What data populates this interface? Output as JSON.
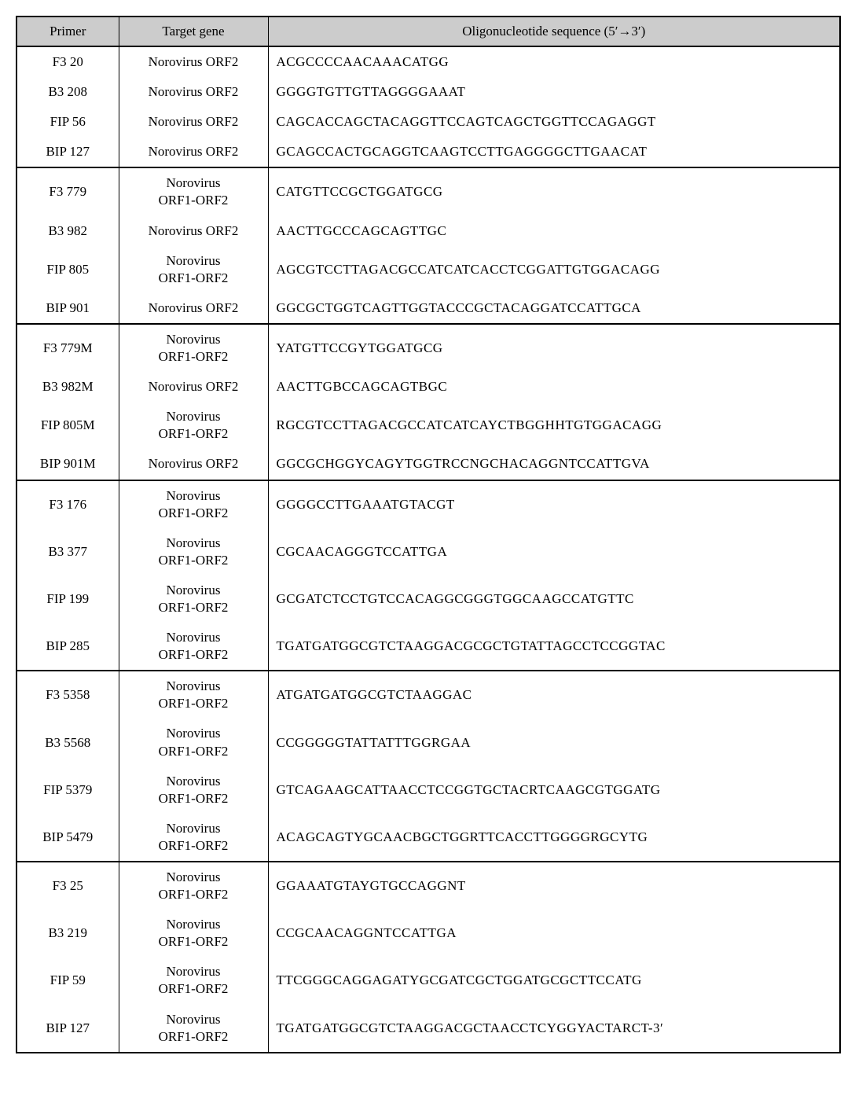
{
  "columns": {
    "primer": "Primer",
    "target": "Target gene",
    "sequence": "Oligonucleotide sequence (5′→3′)"
  },
  "groups": [
    {
      "rows": [
        {
          "primer": "F3 20",
          "target": "Norovirus ORF2",
          "target_multiline": false,
          "sequence": "ACGCCCCAACAAACATGG"
        },
        {
          "primer": "B3 208",
          "target": "Norovirus ORF2",
          "target_multiline": false,
          "sequence": "GGGGTGTTGTTAGGGGAAAT"
        },
        {
          "primer": "FIP 56",
          "target": "Norovirus ORF2",
          "target_multiline": false,
          "sequence": "CAGCACCAGCTACAGGTTCCAGTCAGCTGGTTCCAGAGGT"
        },
        {
          "primer": "BIP 127",
          "target": "Norovirus ORF2",
          "target_multiline": false,
          "sequence": "GCAGCCACTGCAGGTCAAGTCCTTGAGGGGCTTGAACAT"
        }
      ]
    },
    {
      "rows": [
        {
          "primer": "F3 779",
          "target": "Norovirus\nORF1-ORF2",
          "target_multiline": true,
          "sequence": "CATGTTCCGCTGGATGCG"
        },
        {
          "primer": "B3 982",
          "target": "Norovirus ORF2",
          "target_multiline": false,
          "sequence": "AACTTGCCCAGCAGTTGC"
        },
        {
          "primer": "FIP 805",
          "target": "Norovirus\nORF1-ORF2",
          "target_multiline": true,
          "sequence": "AGCGTCCTTAGACGCCATCATCACCTCGGATTGTGGACAGG"
        },
        {
          "primer": "BIP 901",
          "target": "Norovirus ORF2",
          "target_multiline": false,
          "sequence": "GGCGCTGGTCAGTTGGTACCCGCTACAGGATCCATTGCA"
        }
      ]
    },
    {
      "rows": [
        {
          "primer": "F3 779M",
          "target": "Norovirus\nORF1-ORF2",
          "target_multiline": true,
          "sequence": "YATGTTCCGYTGGATGCG"
        },
        {
          "primer": "B3 982M",
          "target": "Norovirus ORF2",
          "target_multiline": false,
          "sequence": "AACTTGBCCAGCAGTBGC"
        },
        {
          "primer": "FIP 805M",
          "target": "Norovirus\nORF1-ORF2",
          "target_multiline": true,
          "sequence": "RGCGTCCTTAGACGCCATCATCAYCTBGGHHTGTGGACAGG"
        },
        {
          "primer": "BIP 901M",
          "target": "Norovirus ORF2",
          "target_multiline": false,
          "sequence": "GGCGCHGGYCAGYTGGTRCCNGCHACAGGNTCCATTGVA"
        }
      ]
    },
    {
      "rows": [
        {
          "primer": "F3 176",
          "target": "Norovirus\nORF1-ORF2",
          "target_multiline": true,
          "sequence": "GGGGCCTTGAAATGTACGT"
        },
        {
          "primer": "B3 377",
          "target": "Norovirus\nORF1-ORF2",
          "target_multiline": true,
          "sequence": "CGCAACAGGGTCCATTGA"
        },
        {
          "primer": "FIP 199",
          "target": "Norovirus\nORF1-ORF2",
          "target_multiline": true,
          "sequence": "GCGATCTCCTGTCCACAGGCGGGTGGCAAGCCATGTTC"
        },
        {
          "primer": "BIP 285",
          "target": "Norovirus\nORF1-ORF2",
          "target_multiline": true,
          "sequence": "TGATGATGGCGTCTAAGGACGCGCTGTATTAGCCTCCGGTAC"
        }
      ]
    },
    {
      "rows": [
        {
          "primer": "F3 5358",
          "target": "Norovirus\nORF1-ORF2",
          "target_multiline": true,
          "sequence": "ATGATGATGGCGTCTAAGGAC"
        },
        {
          "primer": "B3 5568",
          "target": "Norovirus\nORF1-ORF2",
          "target_multiline": true,
          "sequence": "CCGGGGGTATTATTTGGRGAA"
        },
        {
          "primer": "FIP 5379",
          "target": "Norovirus\nORF1-ORF2",
          "target_multiline": true,
          "sequence": "GTCAGAAGCATTAACCTCCGGTGCTACRTCAAGCGTGGATG"
        },
        {
          "primer": "BIP 5479",
          "target": "Norovirus\nORF1-ORF2",
          "target_multiline": true,
          "sequence": "ACAGCAGTYGCAACBGCTGGRTTCACCTTGGGGRGCYTG"
        }
      ]
    },
    {
      "rows": [
        {
          "primer": "F3 25",
          "target": "Norovirus\nORF1-ORF2",
          "target_multiline": true,
          "sequence": "GGAAATGTAYGTGCCAGGNT"
        },
        {
          "primer": "B3 219",
          "target": "Norovirus\nORF1-ORF2",
          "target_multiline": true,
          "sequence": "CCGCAACAGGNTCCATTGA"
        },
        {
          "primer": "FIP 59",
          "target": "Norovirus\nORF1-ORF2",
          "target_multiline": true,
          "sequence": "TTCGGGCAGGAGATYGCGATCGCTGGATGCGCTTCCATG"
        },
        {
          "primer": "BIP 127",
          "target": "Norovirus\nORF1-ORF2",
          "target_multiline": true,
          "sequence": "TGATGATGGCGTCTAAGGACGCTAACCTCYGGYACTARCT-3′"
        }
      ]
    }
  ]
}
